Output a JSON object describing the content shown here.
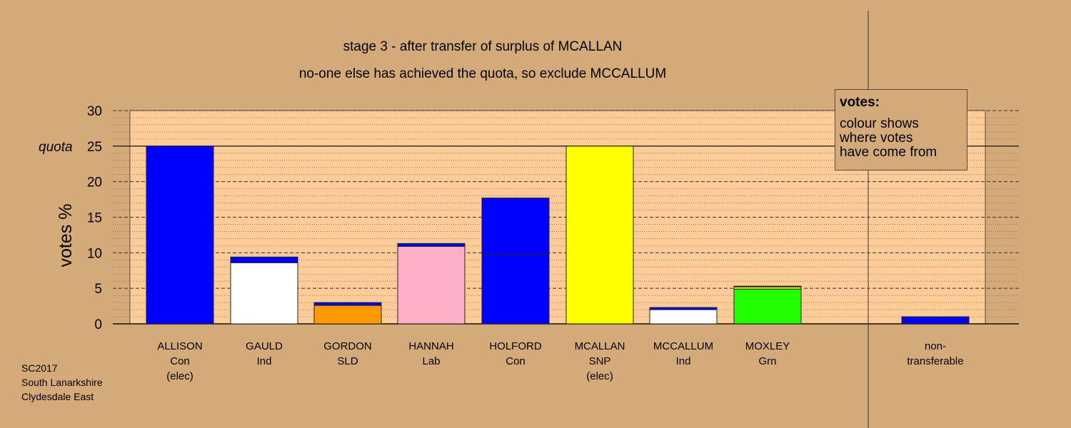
{
  "header": {
    "title": "stage 3 - after transfer of surplus of MCALLAN",
    "subtitle": "no-one else has achieved the quota, so exclude MCCALLUM"
  },
  "legend": {
    "heading": "votes:",
    "lines": [
      "colour shows",
      "where votes",
      "have come from"
    ]
  },
  "footer": {
    "lines": [
      "SC2017",
      "South Lanarkshire",
      "Clydesdale East"
    ]
  },
  "chart_data": {
    "type": "bar",
    "ylabel": "votes %",
    "ylim": [
      0,
      30
    ],
    "yticks": [
      0,
      5,
      10,
      15,
      20,
      25,
      30
    ],
    "quota": 25,
    "quota_label": "quota",
    "grid": "horizontal",
    "legend_position": "top-right",
    "categories": [
      {
        "lines": [
          "ALLISON",
          "Con",
          "(elec)"
        ],
        "segments": [
          {
            "value": 25.0,
            "color": "#0000ff"
          }
        ]
      },
      {
        "lines": [
          "GAULD",
          "Ind"
        ],
        "segments": [
          {
            "value": 8.6,
            "color": "#ffffff"
          },
          {
            "value": 0.8,
            "color": "#0000ff"
          }
        ]
      },
      {
        "lines": [
          "GORDON",
          "SLD"
        ],
        "segments": [
          {
            "value": 2.6,
            "color": "#ff9900"
          },
          {
            "value": 0.4,
            "color": "#0000ff"
          }
        ]
      },
      {
        "lines": [
          "HANNAH",
          "Lab"
        ],
        "segments": [
          {
            "value": 10.9,
            "color": "#ffb0c8"
          },
          {
            "value": 0.4,
            "color": "#0000ff"
          }
        ]
      },
      {
        "lines": [
          "HOLFORD",
          "Con"
        ],
        "segments": [
          {
            "value": 9.7,
            "color": "#0000ff"
          },
          {
            "value": 8.0,
            "color": "#0000ff"
          }
        ]
      },
      {
        "lines": [
          "MCALLAN",
          "SNP",
          "(elec)"
        ],
        "segments": [
          {
            "value": 25.0,
            "color": "#ffff00"
          }
        ]
      },
      {
        "lines": [
          "MCCALLUM",
          "Ind"
        ],
        "segments": [
          {
            "value": 2.0,
            "color": "#ffffff"
          },
          {
            "value": 0.3,
            "color": "#0000ff"
          }
        ]
      },
      {
        "lines": [
          "MOXLEY",
          "Grn"
        ],
        "segments": [
          {
            "value": 4.9,
            "color": "#22ff00"
          },
          {
            "value": 0.3,
            "color": "#ffff00"
          },
          {
            "value": 0.1,
            "color": "#0000ff"
          }
        ]
      },
      {
        "lines": [
          "non-",
          "transferable"
        ],
        "segments": [
          {
            "value": 1.0,
            "color": "#0000ff"
          }
        ],
        "separate": true
      }
    ]
  }
}
